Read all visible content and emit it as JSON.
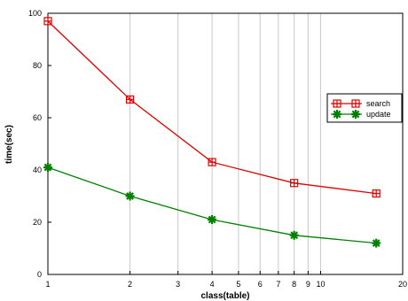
{
  "chart_data": {
    "type": "line",
    "title": "",
    "xlabel": "class(table)",
    "ylabel": "time(sec)",
    "x_scale": "log",
    "xlim": [
      1,
      20
    ],
    "ylim": [
      0,
      100
    ],
    "x_ticks": [
      1,
      2,
      3,
      4,
      5,
      6,
      7,
      8,
      9,
      10,
      20
    ],
    "y_ticks": [
      0,
      20,
      40,
      60,
      80,
      100
    ],
    "grid": "vertical",
    "legend_position": "right",
    "x": [
      1,
      2,
      4,
      8,
      16
    ],
    "series": [
      {
        "name": "search",
        "color": "#e00000",
        "marker": "square-plus",
        "values": [
          97,
          67,
          43,
          35,
          31
        ]
      },
      {
        "name": "update",
        "color": "#008000",
        "marker": "star",
        "values": [
          41,
          30,
          21,
          15,
          12
        ]
      }
    ]
  }
}
